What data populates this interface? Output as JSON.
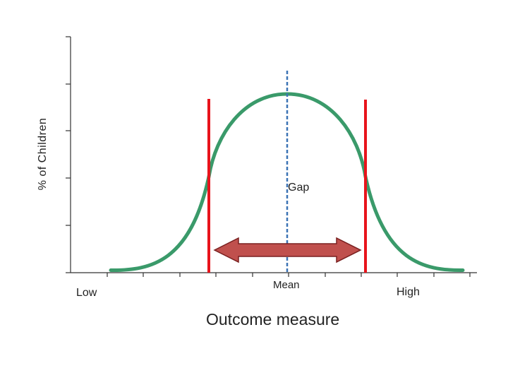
{
  "diagram": {
    "y_axis_label": "% of Children",
    "x_axis_label": "Outcome measure",
    "low_label": "Low",
    "mean_label": "Mean",
    "high_label": "High",
    "gap_label": "Gap",
    "colors": {
      "curve": "#3a9a6a",
      "boundary_lines": "#e8141c",
      "mean_line": "#3b73b5",
      "arrow_fill": "#c0504d",
      "arrow_stroke": "#7a2020",
      "axis": "#333333"
    }
  }
}
